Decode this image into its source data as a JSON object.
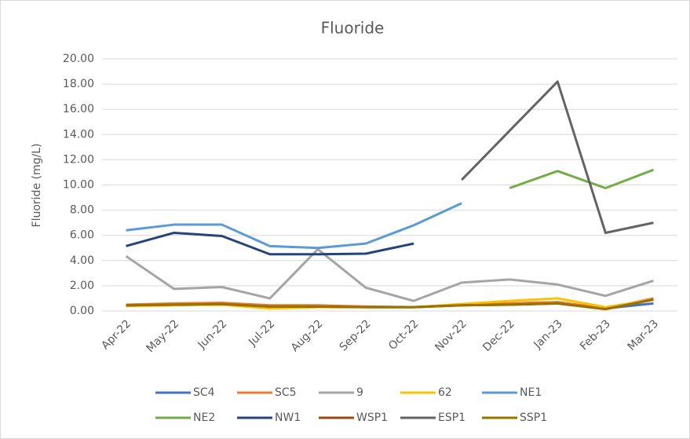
{
  "chart_data": {
    "type": "line",
    "title": "Fluoride",
    "y_label": "Fluoride (mg/L)",
    "categories": [
      "Apr-22",
      "May-22",
      "Jun-22",
      "Jul-22",
      "Aug-22",
      "Sep-22",
      "Oct-22",
      "Nov-22",
      "Dec-22",
      "Jan-23",
      "Feb-23",
      "Mar-23"
    ],
    "ylim": [
      0,
      20
    ],
    "yticks": [
      {
        "value": 0,
        "label": "0.00"
      },
      {
        "value": 2,
        "label": "2.00"
      },
      {
        "value": 4,
        "label": "4.00"
      },
      {
        "value": 6,
        "label": "6.00"
      },
      {
        "value": 8,
        "label": "8.00"
      },
      {
        "value": 10,
        "label": "10.00"
      },
      {
        "value": 12,
        "label": "12.00"
      },
      {
        "value": 14,
        "label": "14.00"
      },
      {
        "value": 16,
        "label": "16.00"
      },
      {
        "value": 18,
        "label": "18.00"
      },
      {
        "value": 20,
        "label": "20.00"
      }
    ],
    "grid": true,
    "legend": "bottom",
    "series": [
      {
        "name": "SC4",
        "color": "#4472c4",
        "values": [
          0.5,
          0.55,
          0.6,
          0.4,
          0.4,
          0.35,
          0.3,
          0.5,
          0.6,
          0.7,
          0.2,
          0.6
        ]
      },
      {
        "name": "SC5",
        "color": "#ed7d31",
        "values": [
          0.5,
          0.6,
          0.65,
          0.45,
          0.45,
          0.35,
          0.3,
          0.5,
          0.6,
          0.7,
          0.2,
          1.0
        ]
      },
      {
        "name": "9",
        "color": "#a5a5a5",
        "values": [
          4.35,
          1.75,
          1.9,
          1.0,
          4.9,
          1.85,
          0.8,
          2.25,
          2.5,
          2.1,
          1.2,
          2.4
        ]
      },
      {
        "name": "62",
        "color": "#ffc000",
        "values": [
          0.4,
          0.45,
          0.5,
          0.2,
          0.3,
          0.3,
          0.3,
          0.55,
          0.8,
          1.0,
          0.3,
          0.9
        ]
      },
      {
        "name": "NE1",
        "color": "#5b9bd5",
        "values": [
          6.4,
          6.85,
          6.85,
          5.15,
          5.0,
          5.35,
          6.8,
          8.55,
          null,
          null,
          null,
          null
        ]
      },
      {
        "name": "NE2",
        "color": "#70ad47",
        "values": [
          null,
          null,
          null,
          null,
          null,
          null,
          null,
          null,
          9.75,
          11.1,
          9.75,
          11.2
        ]
      },
      {
        "name": "NW1",
        "color": "#264478",
        "values": [
          5.15,
          6.2,
          5.95,
          4.5,
          4.5,
          4.55,
          5.35,
          null,
          null,
          null,
          null,
          null
        ]
      },
      {
        "name": "WSP1",
        "color": "#9e480e",
        "values": [
          0.45,
          0.5,
          0.55,
          0.35,
          0.35,
          0.3,
          0.3,
          0.45,
          0.5,
          0.6,
          0.15,
          0.9
        ]
      },
      {
        "name": "ESP1",
        "color": "#636363",
        "values": [
          null,
          null,
          null,
          null,
          null,
          null,
          null,
          10.4,
          14.3,
          18.2,
          6.2,
          7.0
        ]
      },
      {
        "name": "SSP1",
        "color": "#997300",
        "values": [
          0.45,
          0.5,
          0.55,
          0.35,
          0.35,
          0.3,
          0.3,
          0.45,
          0.5,
          0.6,
          0.15,
          0.9
        ]
      }
    ]
  }
}
